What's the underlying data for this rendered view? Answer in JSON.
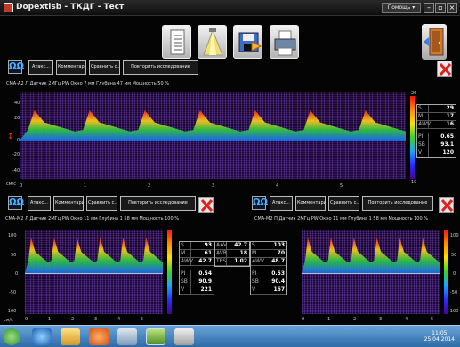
{
  "window": {
    "title": "Dopextlsb - ТКДГ - Тест",
    "help_label": "Помощь ▾",
    "min": "–",
    "max": "▫",
    "close": "×"
  },
  "toolbar": {
    "icons": [
      "report-icon",
      "scan-icon",
      "save-icon",
      "print-icon",
      "exit-door-icon"
    ]
  },
  "controls": {
    "tape": "ΩΩ",
    "buttons": [
      "Атакс...",
      "Комментарий",
      "Сравнить с...",
      "Повторить исследование"
    ]
  },
  "top_probe": {
    "info": "СМА-А2 Л   Датчик 2МГц PW   Окно 7 мм   Глубина 47 мм   Мощность 50 %",
    "scale_top": "26",
    "scale_bottom": "19",
    "vaxis": [
      "40",
      "20",
      "0",
      "-20",
      "-40"
    ],
    "xaxis": [
      "0",
      "1",
      "2",
      "3",
      "4",
      "5"
    ],
    "xunit": "см/с",
    "metrics": [
      {
        "k": "S",
        "v": "29"
      },
      {
        "k": "M",
        "v": "17"
      },
      {
        "k": "AWV",
        "v": "16"
      },
      {
        "k": "PI",
        "v": "0.65"
      },
      {
        "k": "SB",
        "v": "93.1"
      },
      {
        "k": "V",
        "v": "120"
      }
    ]
  },
  "left_probe": {
    "info": "СМА-М2 Л   Датчик 2МГц PW   Окно 11 мм   Глубина 1 58 мм   Мощность 100 %",
    "xaxis": [
      "0",
      "1",
      "2",
      "3",
      "4",
      "5"
    ],
    "vaxis": [
      "100",
      "50",
      "0",
      "-50",
      "-100"
    ],
    "xunit": "см/с",
    "metrics": [
      {
        "k": "S",
        "v": "93"
      },
      {
        "k": "M",
        "v": "61"
      },
      {
        "k": "AWV",
        "v": "42.7"
      },
      {
        "k": "PI",
        "v": "0.54"
      },
      {
        "k": "SB",
        "v": "90.9"
      },
      {
        "k": "V",
        "v": "221"
      }
    ]
  },
  "center_metrics": [
    {
      "k": "AAV",
      "v": "42.7"
    },
    {
      "k": "AVR",
      "v": "18"
    },
    {
      "k": "TPS",
      "v": "1.02"
    }
  ],
  "right_probe": {
    "info": "СМА-М2 П   Датчик 2МГц PW   Окно 11 мм   Глубина 1 58 мм   Мощность 100 %",
    "xaxis": [
      "0",
      "1",
      "2",
      "3",
      "4",
      "5"
    ],
    "vaxis": [
      "100",
      "50",
      "0",
      "-50",
      "-100"
    ],
    "xunit": "см/с",
    "metrics": [
      {
        "k": "S",
        "v": "103"
      },
      {
        "k": "M",
        "v": "70"
      },
      {
        "k": "AWV",
        "v": "48.7"
      },
      {
        "k": "PI",
        "v": "0.53"
      },
      {
        "k": "SB",
        "v": "90.4"
      },
      {
        "k": "V",
        "v": "167"
      }
    ]
  },
  "taskbar": {
    "clock_time": "11:05",
    "clock_date": "25.04.2014"
  },
  "colors": {
    "accent": "#c0392b",
    "tape": "#4ab4ff",
    "taskbar": "#3a78b4"
  }
}
